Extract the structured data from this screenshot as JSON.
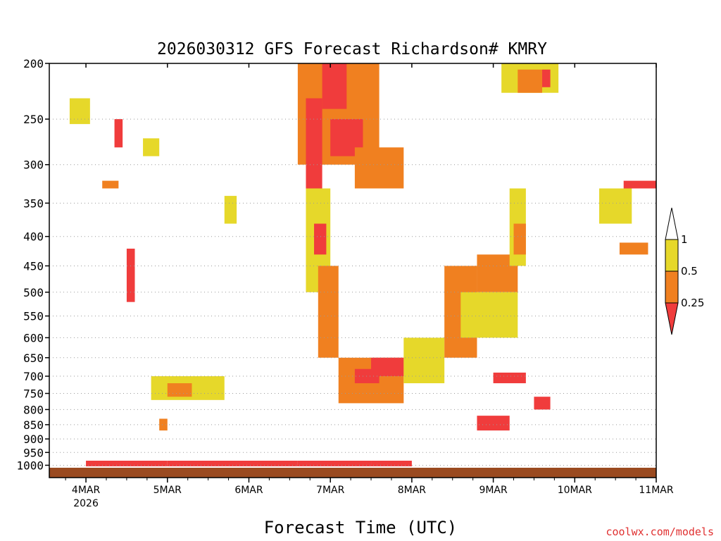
{
  "chart_data": {
    "type": "heatmap",
    "title": "2026030312 GFS Forecast Richardson# KMRY",
    "xlabel": "Forecast Time (UTC)",
    "ylabel": "",
    "credit": "coolwx.com/models",
    "x_unit": "days from 4MAR 00Z",
    "xlim": [
      -0.45,
      7.0
    ],
    "y_pressure_levels": [
      200,
      250,
      300,
      350,
      400,
      450,
      500,
      550,
      600,
      650,
      700,
      750,
      800,
      850,
      900,
      950,
      1000
    ],
    "ylim": [
      200,
      1010
    ],
    "x_ticks": [
      {
        "x": 0,
        "label": "4MAR",
        "sublabel": "2026"
      },
      {
        "x": 1,
        "label": "5MAR",
        "sublabel": ""
      },
      {
        "x": 2,
        "label": "6MAR",
        "sublabel": ""
      },
      {
        "x": 3,
        "label": "7MAR",
        "sublabel": ""
      },
      {
        "x": 4,
        "label": "8MAR",
        "sublabel": ""
      },
      {
        "x": 5,
        "label": "9MAR",
        "sublabel": ""
      },
      {
        "x": 6,
        "label": "10MAR",
        "sublabel": ""
      },
      {
        "x": 7,
        "label": "11MAR",
        "sublabel": ""
      }
    ],
    "legend": {
      "thresholds": [
        "1",
        "0.5",
        "0.25"
      ],
      "bins": [
        {
          "range": "> 1",
          "color": "#ffffff"
        },
        {
          "range": "0.5 – 1",
          "color": "#e6d82a"
        },
        {
          "range": "0.25 – 0.5",
          "color": "#f08020"
        },
        {
          "range": "< 0.25",
          "color": "#f03c3c"
        }
      ]
    },
    "ground_color": "#9a4a20",
    "patches": [
      {
        "x0": 2.6,
        "x1": 3.6,
        "p0": 200,
        "p1": 300,
        "level": "orange"
      },
      {
        "x0": 2.9,
        "x1": 3.2,
        "p0": 200,
        "p1": 240,
        "level": "red"
      },
      {
        "x0": 2.7,
        "x1": 2.9,
        "p0": 230,
        "p1": 330,
        "level": "red"
      },
      {
        "x0": 3.0,
        "x1": 3.4,
        "p0": 250,
        "p1": 290,
        "level": "red"
      },
      {
        "x0": 3.3,
        "x1": 3.9,
        "p0": 280,
        "p1": 330,
        "level": "orange"
      },
      {
        "x0": 2.7,
        "x1": 3.0,
        "p0": 330,
        "p1": 500,
        "level": "yellow"
      },
      {
        "x0": 2.8,
        "x1": 2.95,
        "p0": 380,
        "p1": 430,
        "level": "red"
      },
      {
        "x0": 2.85,
        "x1": 3.1,
        "p0": 450,
        "p1": 650,
        "level": "orange"
      },
      {
        "x0": 3.1,
        "x1": 3.9,
        "p0": 650,
        "p1": 780,
        "level": "orange"
      },
      {
        "x0": 3.3,
        "x1": 3.6,
        "p0": 680,
        "p1": 720,
        "level": "red"
      },
      {
        "x0": 3.5,
        "x1": 3.9,
        "p0": 650,
        "p1": 700,
        "level": "red"
      },
      {
        "x0": 3.9,
        "x1": 4.4,
        "p0": 600,
        "p1": 720,
        "level": "yellow"
      },
      {
        "x0": 4.4,
        "x1": 4.8,
        "p0": 450,
        "p1": 650,
        "level": "orange"
      },
      {
        "x0": 4.8,
        "x1": 5.3,
        "p0": 430,
        "p1": 500,
        "level": "orange"
      },
      {
        "x0": 4.6,
        "x1": 5.3,
        "p0": 500,
        "p1": 600,
        "level": "yellow"
      },
      {
        "x0": 5.2,
        "x1": 5.4,
        "p0": 330,
        "p1": 450,
        "level": "yellow"
      },
      {
        "x0": 5.25,
        "x1": 5.4,
        "p0": 380,
        "p1": 430,
        "level": "orange"
      },
      {
        "x0": 5.0,
        "x1": 5.4,
        "p0": 690,
        "p1": 720,
        "level": "red"
      },
      {
        "x0": 5.5,
        "x1": 5.7,
        "p0": 760,
        "p1": 800,
        "level": "red"
      },
      {
        "x0": 4.8,
        "x1": 5.2,
        "p0": 820,
        "p1": 870,
        "level": "red"
      },
      {
        "x0": 5.1,
        "x1": 5.8,
        "p0": 200,
        "p1": 225,
        "level": "yellow"
      },
      {
        "x0": 5.3,
        "x1": 5.6,
        "p0": 205,
        "p1": 225,
        "level": "orange"
      },
      {
        "x0": 5.6,
        "x1": 5.7,
        "p0": 205,
        "p1": 220,
        "level": "red"
      },
      {
        "x0": 6.3,
        "x1": 6.7,
        "p0": 330,
        "p1": 380,
        "level": "yellow"
      },
      {
        "x0": 6.6,
        "x1": 7.0,
        "p0": 320,
        "p1": 330,
        "level": "red"
      },
      {
        "x0": 6.55,
        "x1": 6.9,
        "p0": 410,
        "p1": 430,
        "level": "orange"
      },
      {
        "x0": 0.8,
        "x1": 1.7,
        "p0": 700,
        "p1": 770,
        "level": "yellow"
      },
      {
        "x0": 1.0,
        "x1": 1.3,
        "p0": 720,
        "p1": 760,
        "level": "orange"
      },
      {
        "x0": 0.9,
        "x1": 1.0,
        "p0": 830,
        "p1": 870,
        "level": "orange"
      },
      {
        "x0": 0.5,
        "x1": 0.6,
        "p0": 420,
        "p1": 520,
        "level": "red"
      },
      {
        "x0": 0.35,
        "x1": 0.45,
        "p0": 250,
        "p1": 280,
        "level": "red"
      },
      {
        "x0": 0.2,
        "x1": 0.4,
        "p0": 320,
        "p1": 330,
        "level": "orange"
      },
      {
        "x0": -0.2,
        "x1": 0.05,
        "p0": 230,
        "p1": 255,
        "level": "yellow"
      },
      {
        "x0": 0.7,
        "x1": 0.9,
        "p0": 270,
        "p1": 290,
        "level": "yellow"
      },
      {
        "x0": 1.7,
        "x1": 1.85,
        "p0": 340,
        "p1": 380,
        "level": "yellow"
      }
    ],
    "ground_band": [
      {
        "x0": 0.0,
        "x1": 1.0,
        "level": "red"
      },
      {
        "x0": 1.0,
        "x1": 2.6,
        "level": "red"
      },
      {
        "x0": 2.6,
        "x1": 3.5,
        "level": "red"
      },
      {
        "x0": 3.5,
        "x1": 4.0,
        "level": "red"
      }
    ]
  }
}
